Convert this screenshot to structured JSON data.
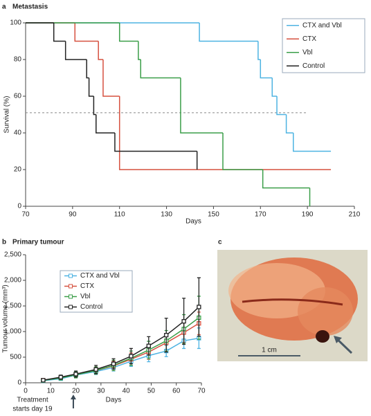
{
  "chart_data": [
    {
      "type": "step",
      "panel_label": "a",
      "title": "Metastasis",
      "x_label": "Days",
      "y_label": "Survival (%)",
      "xlim": [
        70,
        210
      ],
      "xticks": [
        70,
        90,
        110,
        130,
        150,
        170,
        190,
        210
      ],
      "ylim": [
        0,
        100
      ],
      "yticks": [
        0,
        20,
        40,
        60,
        80,
        100
      ],
      "reference_line": {
        "y": 51,
        "x": [
          70,
          190
        ]
      },
      "legend": "upper right",
      "series": [
        {
          "name": "CTX and Vbl",
          "color": "#4db3e2",
          "x": [
            70,
            144,
            169,
            170,
            175,
            177,
            181,
            184,
            200
          ],
          "values": [
            100,
            90,
            80,
            70,
            60,
            50,
            40,
            30,
            30
          ]
        },
        {
          "name": "CTX",
          "color": "#d6503f",
          "x": [
            70,
            91,
            101,
            103,
            110,
            200
          ],
          "values": [
            100,
            90,
            80,
            60,
            20,
            20
          ]
        },
        {
          "name": "Vbl",
          "color": "#3a9e48",
          "x": [
            70,
            110,
            118,
            119,
            136,
            154,
            171,
            191
          ],
          "values": [
            100,
            90,
            80,
            70,
            40,
            20,
            10,
            0
          ]
        },
        {
          "name": "Control",
          "color": "#222222",
          "x": [
            70,
            82,
            87,
            96,
            97,
            99,
            100,
            108,
            143
          ],
          "values": [
            100,
            90,
            80,
            70,
            60,
            50,
            40,
            30,
            20
          ]
        }
      ]
    },
    {
      "type": "line",
      "panel_label": "b",
      "title": "Primary tumour",
      "x_label": "Days",
      "y_label": "Tumour volume (mm³)",
      "xlim": [
        0,
        70
      ],
      "xticks": [
        0,
        10,
        20,
        30,
        40,
        50,
        60,
        70
      ],
      "ylim": [
        0,
        2500
      ],
      "yticks": [
        0,
        500,
        {
          "value": 1000,
          "label": "1,000"
        },
        {
          "value": 1500,
          "label": "1,500"
        },
        {
          "value": 2000,
          "label": "2,000"
        },
        {
          "value": 2500,
          "label": "2,500"
        }
      ],
      "annotation": {
        "text": [
          "Treatment",
          "starts day 19"
        ],
        "x": 19
      },
      "legend": "upper left",
      "x": [
        7,
        14,
        20,
        28,
        35,
        42,
        49,
        56,
        63,
        69
      ],
      "series": [
        {
          "name": "CTX and Vbl",
          "color": "#4db3e2",
          "values": [
            40,
            80,
            150,
            220,
            300,
            420,
            530,
            620,
            820,
            870
          ],
          "errors": [
            20,
            30,
            50,
            60,
            70,
            100,
            120,
            110,
            150,
            200
          ]
        },
        {
          "name": "CTX",
          "color": "#d6503f",
          "values": [
            50,
            100,
            160,
            240,
            330,
            460,
            600,
            780,
            980,
            1160
          ],
          "errors": [
            20,
            40,
            60,
            70,
            90,
            120,
            140,
            160,
            200,
            220
          ]
        },
        {
          "name": "Vbl",
          "color": "#3a9e48",
          "values": [
            45,
            95,
            155,
            240,
            340,
            480,
            640,
            820,
            1050,
            1270
          ],
          "errors": [
            20,
            40,
            60,
            70,
            100,
            140,
            170,
            200,
            280,
            420
          ]
        },
        {
          "name": "Control",
          "color": "#222222",
          "values": [
            50,
            110,
            170,
            260,
            370,
            520,
            720,
            930,
            1200,
            1480
          ],
          "errors": [
            20,
            40,
            60,
            80,
            100,
            150,
            180,
            330,
            450,
            570
          ]
        }
      ]
    }
  ],
  "photo": {
    "panel_label": "c",
    "scale_label": "1 cm"
  }
}
